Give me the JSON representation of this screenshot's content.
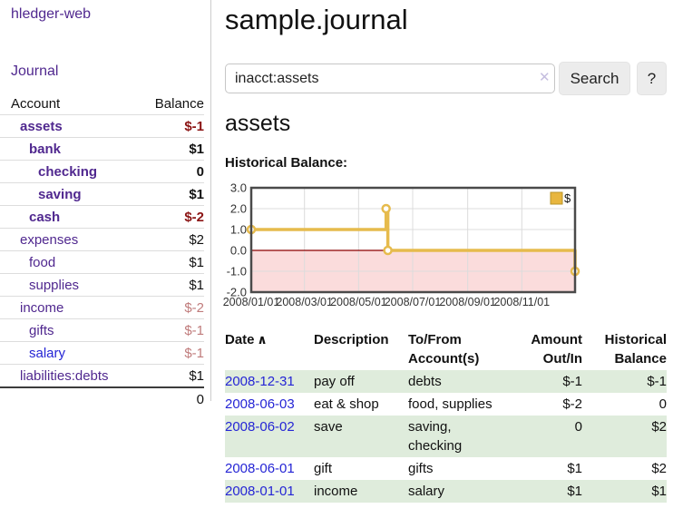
{
  "colors": {
    "link_purple": "#50288f",
    "link_blue": "#2525d5",
    "negative_strong": "#8b1414",
    "negative_soft": "#c07c7c",
    "row_stripe_green": "#dfecdc",
    "chart_line_gold": "#e6bb4d",
    "chart_negative_fill": "#fbdcdc",
    "chart_zero_line": "#8b0000"
  },
  "topbar": {
    "brand": "hledger-web",
    "journal_label": "Journal"
  },
  "sidebar": {
    "columns": {
      "account": "Account",
      "balance": "Balance"
    },
    "accounts": [
      {
        "name": "assets",
        "balance": "$-1",
        "indent": 1,
        "bold": true
      },
      {
        "name": "bank",
        "balance": "$1",
        "indent": 2,
        "bold": true
      },
      {
        "name": "checking",
        "balance": "0",
        "indent": 3,
        "bold": true
      },
      {
        "name": "saving",
        "balance": "$1",
        "indent": 3,
        "bold": true
      },
      {
        "name": "cash",
        "balance": "$-2",
        "indent": 2,
        "bold": true
      },
      {
        "name": "expenses",
        "balance": "$2",
        "indent": 1,
        "bold": false
      },
      {
        "name": "food",
        "balance": "$1",
        "indent": 2,
        "bold": false
      },
      {
        "name": "supplies",
        "balance": "$1",
        "indent": 2,
        "bold": false
      },
      {
        "name": "income",
        "balance": "$-2",
        "indent": 1,
        "bold": false
      },
      {
        "name": "gifts",
        "balance": "$-1",
        "indent": 2,
        "bold": false
      },
      {
        "name": "salary",
        "balance": "$-1",
        "indent": 2,
        "bold": false,
        "link_color": "blue"
      },
      {
        "name": "liabilities:debts",
        "balance": "$1",
        "indent": 1,
        "bold": false
      }
    ],
    "total": "0"
  },
  "main": {
    "title": "sample.journal",
    "search": {
      "value": "inacct:assets",
      "clear_icon": "✕",
      "search_button": "Search",
      "help_button": "?"
    },
    "account_heading": "assets",
    "chart_heading": "Historical Balance:"
  },
  "chart_data": {
    "type": "line",
    "step": true,
    "title": "Historical Balance of assets",
    "legend": [
      {
        "label": "$",
        "color": "#e8b63e"
      }
    ],
    "legend_position": "top-right",
    "grid": true,
    "negative_region_shaded": true,
    "y_ticks": [
      3.0,
      2.0,
      1.0,
      0.0,
      -1.0,
      -2.0
    ],
    "y_range": [
      -2,
      3
    ],
    "x_range_days": [
      0,
      365
    ],
    "x_ticks": [
      {
        "label": "2008/01/01",
        "day": 0
      },
      {
        "label": "2008/03/01",
        "day": 60
      },
      {
        "label": "2008/05/01",
        "day": 121
      },
      {
        "label": "2008/07/01",
        "day": 182
      },
      {
        "label": "2008/09/01",
        "day": 244
      },
      {
        "label": "2008/11/01",
        "day": 305
      }
    ],
    "series": [
      {
        "name": "$",
        "points": [
          {
            "date": "2008-01-01",
            "day": 0,
            "value": 1
          },
          {
            "date": "2008-06-01",
            "day": 152,
            "value": 2
          },
          {
            "date": "2008-06-03",
            "day": 154,
            "value": 0
          },
          {
            "date": "2008-12-31",
            "day": 365,
            "value": -1
          }
        ]
      }
    ]
  },
  "register": {
    "headers": [
      {
        "lines": [
          "Date"
        ],
        "sort_icon": "∧",
        "align": "left"
      },
      {
        "lines": [
          "Description"
        ],
        "align": "left"
      },
      {
        "lines": [
          "To/From",
          "Account(s)"
        ],
        "align": "left"
      },
      {
        "lines": [
          "Amount",
          "Out/In"
        ],
        "align": "right"
      },
      {
        "lines": [
          "Historical",
          "Balance"
        ],
        "align": "right"
      }
    ],
    "rows": [
      {
        "date": "2008-12-31",
        "description": "pay off",
        "to_from": "debts",
        "amount": "$-1",
        "balance": "$-1"
      },
      {
        "date": "2008-06-03",
        "description": "eat & shop",
        "to_from": "food, supplies",
        "amount": "$-2",
        "balance": "0"
      },
      {
        "date": "2008-06-02",
        "description": "save",
        "to_from": "saving,\nchecking",
        "amount": "0",
        "balance": "$2"
      },
      {
        "date": "2008-06-01",
        "description": "gift",
        "to_from": "gifts",
        "amount": "$1",
        "balance": "$2"
      },
      {
        "date": "2008-01-01",
        "description": "income",
        "to_from": "salary",
        "amount": "$1",
        "balance": "$1"
      }
    ]
  }
}
